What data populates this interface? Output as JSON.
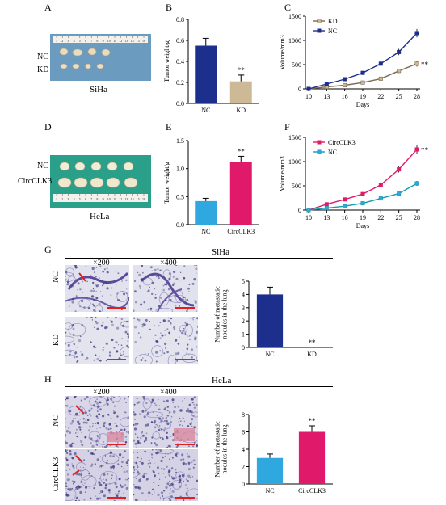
{
  "panel_labels": {
    "A": "A",
    "B": "B",
    "C": "C",
    "D": "D",
    "E": "E",
    "F": "F",
    "G": "G",
    "H": "H"
  },
  "captions": {
    "siha": "SiHa",
    "hela": "HeLa"
  },
  "row_labels": {
    "a_nc": "NC",
    "a_kd": "KD",
    "d_nc": "NC",
    "d_circ": "CircCLK3",
    "g_nc": "NC",
    "g_kd": "KD",
    "h_nc": "NC",
    "h_circ": "CircCLK3"
  },
  "section_titles": {
    "g": "SiHa",
    "h": "HeLa"
  },
  "magnifications": {
    "x200": "×200",
    "x400": "×400"
  },
  "ruler_ticks": [
    "1",
    "2",
    "3",
    "4",
    "5",
    "6",
    "7",
    "8",
    "9",
    "10",
    "11",
    "12",
    "13",
    "14",
    "15",
    "16"
  ],
  "colors": {
    "navy": "#1d2f8c",
    "tan": "#cdb996",
    "cyan": "#2fa7df",
    "magenta": "#e0196a",
    "teal": "#159ab0",
    "tissue_bg": "#dcdce8",
    "stain": "#3b3b7e"
  },
  "chart_data": [
    {
      "id": "B",
      "type": "bar",
      "categories": [
        "NC",
        "KD"
      ],
      "values": [
        0.55,
        0.21
      ],
      "errors": [
        0.07,
        0.06
      ],
      "colors": [
        "#1d2f8c",
        "#cdb996"
      ],
      "ylabel": "Tumor weight/g",
      "ylim": [
        0,
        0.8
      ],
      "yticks": [
        "0.0",
        "0.2",
        "0.4",
        "0.6",
        "0.8"
      ],
      "annotations": [
        {
          "category": "KD",
          "text": "**"
        }
      ]
    },
    {
      "id": "C",
      "type": "line",
      "x": [
        10,
        13,
        16,
        19,
        22,
        25,
        28
      ],
      "xlabel": "Days",
      "ylabel": "Volume/mm3",
      "ylim": [
        0,
        1500
      ],
      "yticks": [
        "0",
        "500",
        "1000",
        "1500"
      ],
      "legend_position": "top-left",
      "series": [
        {
          "name": "KD",
          "color": "#cdb996",
          "line": "#7a6a52",
          "values": [
            0,
            40,
            75,
            130,
            210,
            370,
            520
          ],
          "errors": [
            5,
            10,
            12,
            18,
            25,
            40,
            60
          ]
        },
        {
          "name": "NC",
          "color": "#1d2f8c",
          "line": "#1d2f8c",
          "values": [
            0,
            100,
            200,
            330,
            520,
            760,
            1150
          ],
          "errors": [
            8,
            18,
            25,
            40,
            55,
            65,
            85
          ]
        }
      ],
      "annotations": [
        {
          "series": "KD",
          "text": "**"
        }
      ]
    },
    {
      "id": "E",
      "type": "bar",
      "categories": [
        "NC",
        "CircCLK3"
      ],
      "values": [
        0.42,
        1.12
      ],
      "errors": [
        0.05,
        0.1
      ],
      "colors": [
        "#2fa7df",
        "#e0196a"
      ],
      "ylabel": "Tumor weight/g",
      "ylim": [
        0,
        1.5
      ],
      "yticks": [
        "0.0",
        "0.5",
        "1.0",
        "1.5"
      ],
      "annotations": [
        {
          "category": "CircCLK3",
          "text": "**"
        }
      ]
    },
    {
      "id": "F",
      "type": "line",
      "x": [
        10,
        13,
        16,
        19,
        22,
        25,
        28
      ],
      "xlabel": "Days",
      "ylabel": "Volume/mm3",
      "ylim": [
        0,
        1500
      ],
      "yticks": [
        "0",
        "500",
        "1000",
        "1500"
      ],
      "legend_position": "top-left",
      "series": [
        {
          "name": "CircCLK3",
          "color": "#e0196a",
          "line": "#e0196a",
          "values": [
            0,
            120,
            220,
            330,
            520,
            840,
            1250
          ],
          "errors": [
            10,
            20,
            30,
            40,
            55,
            65,
            85
          ]
        },
        {
          "name": "NC",
          "color": "#2fa7df",
          "line": "#159ab0",
          "values": [
            0,
            40,
            80,
            140,
            240,
            340,
            550
          ],
          "errors": [
            5,
            10,
            12,
            18,
            25,
            30,
            50
          ]
        }
      ],
      "annotations": [
        {
          "series": "CircCLK3",
          "text": "**"
        }
      ]
    },
    {
      "id": "G",
      "type": "bar",
      "categories": [
        "NC",
        "KD"
      ],
      "values": [
        4.0,
        0
      ],
      "errors": [
        0.55,
        0
      ],
      "colors": [
        "#1d2f8c",
        "#1d2f8c"
      ],
      "ylabel": "Number of metastatic\nnodules in the lung",
      "ylim": [
        0,
        5
      ],
      "yticks": [
        "0",
        "1",
        "2",
        "3",
        "4",
        "5"
      ],
      "annotations": [
        {
          "category": "KD",
          "text": "**"
        }
      ]
    },
    {
      "id": "H",
      "type": "bar",
      "categories": [
        "NC",
        "CircCLK3"
      ],
      "values": [
        3.0,
        6.0
      ],
      "errors": [
        0.45,
        0.7
      ],
      "colors": [
        "#2fa7df",
        "#e0196a"
      ],
      "ylabel": "Number of metastatic\nnodules in the lung",
      "ylim": [
        0,
        8
      ],
      "yticks": [
        "0",
        "2",
        "4",
        "6",
        "8"
      ],
      "annotations": [
        {
          "category": "CircCLK3",
          "text": "**"
        }
      ]
    }
  ]
}
